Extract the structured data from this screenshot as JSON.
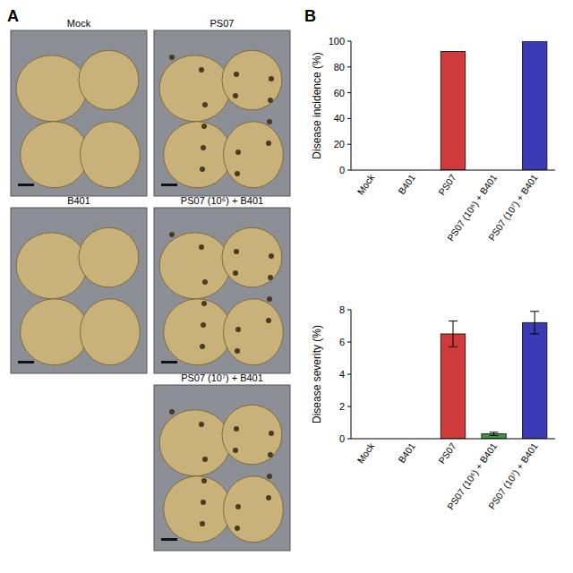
{
  "panel_labels": [
    "A",
    "B"
  ],
  "photos": [
    {
      "label": "Mock"
    },
    {
      "label": "PS07"
    },
    {
      "label": "B401"
    },
    {
      "label": "PS07 (10⁶) + B401"
    },
    {
      "label": "PS07 (10⁷) + B401"
    }
  ],
  "chart_data": [
    {
      "type": "bar",
      "y_label": "Disease incidence (%)",
      "categories": [
        "Mock",
        "B401",
        "PS07",
        "PS07 (10⁶) + B401",
        "PS07 (10⁷) + B401"
      ],
      "values": [
        0,
        0,
        92,
        0,
        100
      ],
      "colors": [
        "#888888",
        "#888888",
        "#d03a3a",
        "#3a9a3a",
        "#3a3ab4"
      ],
      "ylim": [
        0,
        100
      ],
      "yticks": [
        0,
        20,
        40,
        60,
        80,
        100
      ]
    },
    {
      "type": "bar",
      "y_label": "Disease severity (%)",
      "categories": [
        "Mock",
        "B401",
        "PS07",
        "PS07 (10⁶) + B401",
        "PS07 (10⁷) + B401"
      ],
      "values": [
        0,
        0,
        6.5,
        0.3,
        7.2
      ],
      "errors": [
        0,
        0,
        0.8,
        0.1,
        0.7
      ],
      "colors": [
        "#888888",
        "#888888",
        "#d03a3a",
        "#3a9a3a",
        "#3a3ab4"
      ],
      "ylim": [
        0,
        8
      ],
      "yticks": [
        0,
        2,
        4,
        6,
        8
      ]
    }
  ]
}
